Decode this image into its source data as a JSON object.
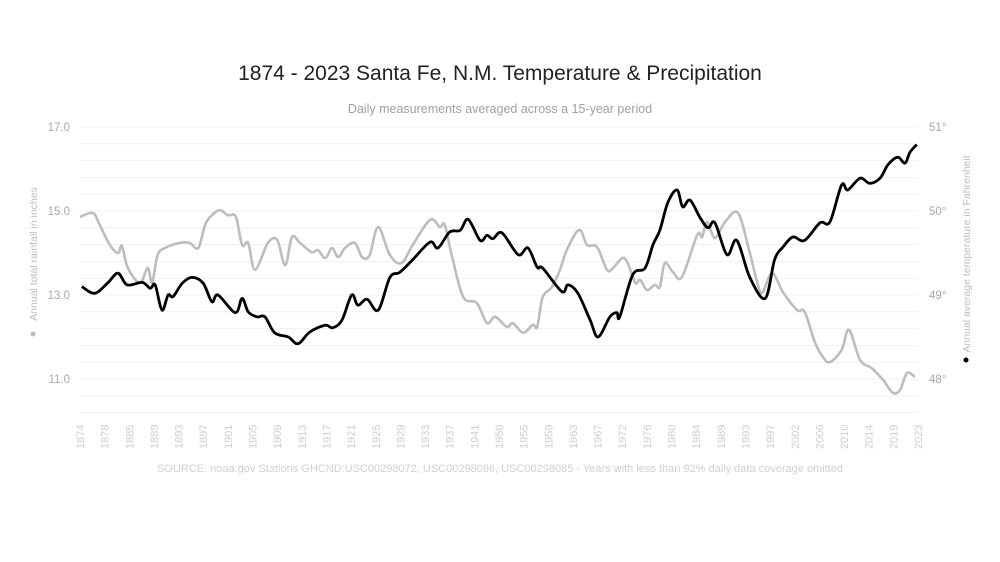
{
  "chart_data": {
    "type": "line",
    "title": "1874 - 2023 Santa Fe, N.M. Temperature & Precipitation",
    "subtitle": "Daily measurements averaged across a 15-year period",
    "source": "SOURCE: noaa.gov Stations GHCND:USC00298072, USC00298086, USC00298085 - Years with less than 92% daily data coverage omitted",
    "x_ticks": [
      "1874",
      "1878",
      "1885",
      "1889",
      "1893",
      "1897",
      "1901",
      "1905",
      "1909",
      "1913",
      "1917",
      "1921",
      "1925",
      "1929",
      "1933",
      "1937",
      "1941",
      "1950",
      "1955",
      "1959",
      "1963",
      "1967",
      "1972",
      "1976",
      "1980",
      "1984",
      "1989",
      "1993",
      "1997",
      "2002",
      "2006",
      "2010",
      "2014",
      "2019",
      "2023"
    ],
    "y_left": {
      "label": "Annual total rainfall in inches",
      "ylim": [
        11.0,
        17.0
      ],
      "ticks": [
        "17.0",
        "15.0",
        "13.0",
        "11.0"
      ],
      "tick_values": [
        17,
        15,
        13,
        11
      ]
    },
    "y_right": {
      "label": "Annual average temperature in Fahrenheit",
      "ylim": [
        48,
        51
      ],
      "ticks": [
        "51°",
        "50°",
        "49°",
        "48°"
      ],
      "tick_values": [
        51,
        50,
        49,
        48
      ]
    },
    "grid": true,
    "series": [
      {
        "axis": "left",
        "color": "#bdbdbd",
        "points": [
          [
            1874,
            14.86
          ],
          [
            1876.1,
            14.95
          ],
          [
            1877.2,
            14.67
          ],
          [
            1879.5,
            14.19
          ],
          [
            1881.8,
            14.0
          ],
          [
            1882.9,
            14.17
          ],
          [
            1884.6,
            13.64
          ],
          [
            1886.7,
            13.29
          ],
          [
            1888.0,
            13.64
          ],
          [
            1888.7,
            13.29
          ],
          [
            1889.6,
            13.95
          ],
          [
            1890.8,
            14.12
          ],
          [
            1893.2,
            14.24
          ],
          [
            1894.8,
            14.24
          ],
          [
            1896.2,
            14.12
          ],
          [
            1897.3,
            14.67
          ],
          [
            1898.4,
            14.9
          ],
          [
            1899.7,
            15.02
          ],
          [
            1901,
            14.9
          ],
          [
            1902.3,
            14.86
          ],
          [
            1903.3,
            14.19
          ],
          [
            1904.3,
            14.24
          ],
          [
            1905.4,
            13.6
          ],
          [
            1907.5,
            14.24
          ],
          [
            1909.0,
            14.31
          ],
          [
            1910.3,
            13.71
          ],
          [
            1911.4,
            14.38
          ],
          [
            1912.7,
            14.24
          ],
          [
            1914.6,
            14.02
          ],
          [
            1915.6,
            14.07
          ],
          [
            1916.8,
            13.88
          ],
          [
            1917.9,
            14.12
          ],
          [
            1918.9,
            13.9
          ],
          [
            1920.0,
            14.12
          ],
          [
            1921.6,
            14.24
          ],
          [
            1922.8,
            13.9
          ],
          [
            1924.0,
            13.95
          ],
          [
            1925.4,
            14.62
          ],
          [
            1927.3,
            13.95
          ],
          [
            1929.2,
            13.76
          ],
          [
            1931.0,
            14.19
          ],
          [
            1933.8,
            14.79
          ],
          [
            1935.4,
            14.62
          ],
          [
            1936.2,
            14.67
          ],
          [
            1937.4,
            13.9
          ],
          [
            1939.2,
            12.95
          ],
          [
            1941.9,
            12.81
          ],
          [
            1945.6,
            12.33
          ],
          [
            1948.6,
            12.48
          ],
          [
            1951.6,
            12.24
          ],
          [
            1952.8,
            12.33
          ],
          [
            1954.9,
            12.1
          ],
          [
            1956.5,
            12.29
          ],
          [
            1957.2,
            12.24
          ],
          [
            1958.1,
            12.95
          ],
          [
            1959.6,
            13.19
          ],
          [
            1960.9,
            13.6
          ],
          [
            1962.0,
            14.07
          ],
          [
            1964.0,
            14.55
          ],
          [
            1965.3,
            14.19
          ],
          [
            1966.9,
            14.14
          ],
          [
            1968.9,
            13.6
          ],
          [
            1970.1,
            13.64
          ],
          [
            1972.0,
            13.88
          ],
          [
            1972.9,
            13.76
          ],
          [
            1974.1,
            13.29
          ],
          [
            1974.9,
            13.36
          ],
          [
            1976.0,
            13.12
          ],
          [
            1977.3,
            13.24
          ],
          [
            1978.1,
            13.19
          ],
          [
            1978.9,
            13.76
          ],
          [
            1980.2,
            13.55
          ],
          [
            1981.7,
            13.43
          ],
          [
            1984.2,
            14.43
          ],
          [
            1985.2,
            14.38
          ],
          [
            1986.2,
            14.74
          ],
          [
            1987.8,
            14.36
          ],
          [
            1989.7,
            14.74
          ],
          [
            1991.8,
            14.95
          ],
          [
            1993.7,
            14.0
          ],
          [
            1994.8,
            13.36
          ],
          [
            1995.7,
            13.05
          ],
          [
            1997.4,
            13.52
          ],
          [
            1999.6,
            13.07
          ],
          [
            2002.4,
            12.64
          ],
          [
            2003.6,
            12.6
          ],
          [
            2005.3,
            11.86
          ],
          [
            2006.6,
            11.52
          ],
          [
            2007.7,
            11.4
          ],
          [
            2009.6,
            11.69
          ],
          [
            2010.8,
            12.17
          ],
          [
            2012.6,
            11.45
          ],
          [
            2014.6,
            11.26
          ],
          [
            2016.9,
            10.98
          ],
          [
            2018.9,
            10.67
          ],
          [
            2020.1,
            10.74
          ],
          [
            2021.2,
            11.14
          ],
          [
            2022.5,
            11.05
          ]
        ]
      },
      {
        "axis": "right",
        "color": "#000000",
        "points": [
          [
            1874.3,
            49.1
          ],
          [
            1876.4,
            49.02
          ],
          [
            1879.0,
            49.15
          ],
          [
            1881.8,
            49.26
          ],
          [
            1884.4,
            49.12
          ],
          [
            1887.1,
            49.15
          ],
          [
            1888.4,
            49.08
          ],
          [
            1889.2,
            49.12
          ],
          [
            1890.3,
            48.82
          ],
          [
            1891.3,
            49.0
          ],
          [
            1892.1,
            48.98
          ],
          [
            1893.6,
            49.14
          ],
          [
            1895.2,
            49.21
          ],
          [
            1897.0,
            49.14
          ],
          [
            1898.4,
            48.92
          ],
          [
            1899.4,
            49.0
          ],
          [
            1902.2,
            48.79
          ],
          [
            1903.3,
            48.96
          ],
          [
            1904.3,
            48.8
          ],
          [
            1905.7,
            48.74
          ],
          [
            1907.0,
            48.74
          ],
          [
            1908.6,
            48.55
          ],
          [
            1910.8,
            48.5
          ],
          [
            1912.4,
            48.42
          ],
          [
            1914.3,
            48.56
          ],
          [
            1916.8,
            48.64
          ],
          [
            1918.0,
            48.61
          ],
          [
            1919.5,
            48.7
          ],
          [
            1921.1,
            49.0
          ],
          [
            1922.1,
            48.88
          ],
          [
            1923.6,
            48.95
          ],
          [
            1925.4,
            48.82
          ],
          [
            1927.3,
            49.21
          ],
          [
            1928.9,
            49.27
          ],
          [
            1931.0,
            49.42
          ],
          [
            1933.8,
            49.63
          ],
          [
            1935.1,
            49.56
          ],
          [
            1937.0,
            49.75
          ],
          [
            1938.7,
            49.77
          ],
          [
            1940.0,
            49.9
          ],
          [
            1943.1,
            49.65
          ],
          [
            1945.6,
            49.71
          ],
          [
            1947.8,
            49.67
          ],
          [
            1950.6,
            49.74
          ],
          [
            1953.9,
            49.48
          ],
          [
            1955.7,
            49.56
          ],
          [
            1957.2,
            49.33
          ],
          [
            1958.1,
            49.32
          ],
          [
            1961.2,
            49.04
          ],
          [
            1962.2,
            49.12
          ],
          [
            1963.8,
            49.02
          ],
          [
            1965.8,
            48.7
          ],
          [
            1967.1,
            48.5
          ],
          [
            1969.5,
            48.74
          ],
          [
            1970.9,
            48.79
          ],
          [
            1971.5,
            48.74
          ],
          [
            1973.7,
            49.24
          ],
          [
            1975.7,
            49.32
          ],
          [
            1977.0,
            49.6
          ],
          [
            1978.1,
            49.77
          ],
          [
            1979.4,
            50.1
          ],
          [
            1980.9,
            50.25
          ],
          [
            1981.8,
            50.05
          ],
          [
            1983.0,
            50.13
          ],
          [
            1984.8,
            49.92
          ],
          [
            1986.4,
            49.8
          ],
          [
            1987.8,
            49.86
          ],
          [
            1990.0,
            49.48
          ],
          [
            1991.6,
            49.65
          ],
          [
            1993.7,
            49.21
          ],
          [
            1996.2,
            48.96
          ],
          [
            1997.9,
            49.42
          ],
          [
            1999.6,
            49.57
          ],
          [
            2001.6,
            49.69
          ],
          [
            2003.6,
            49.65
          ],
          [
            2006.1,
            49.86
          ],
          [
            2007.7,
            49.87
          ],
          [
            2009.6,
            50.31
          ],
          [
            2010.6,
            50.25
          ],
          [
            2012.6,
            50.39
          ],
          [
            2014.2,
            50.33
          ],
          [
            2016.3,
            50.39
          ],
          [
            2017.9,
            50.55
          ],
          [
            2019.7,
            50.64
          ],
          [
            2020.9,
            50.57
          ],
          [
            2021.7,
            50.7
          ],
          [
            2022.8,
            50.79
          ]
        ]
      }
    ]
  }
}
